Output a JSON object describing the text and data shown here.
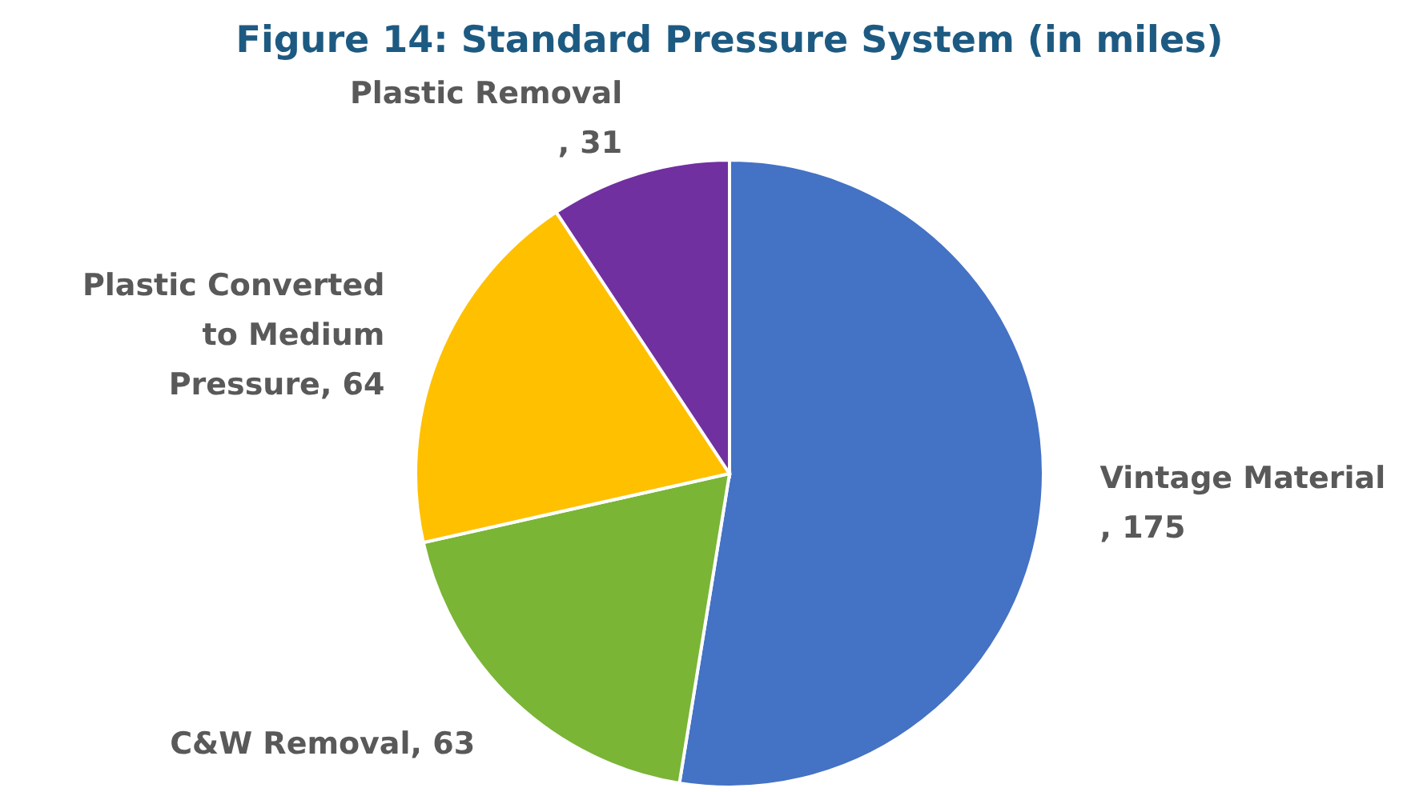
{
  "chart_data": {
    "type": "pie",
    "title": "Figure 14: Standard Pressure System (in miles)",
    "categories": [
      "Vintage Material",
      "C&W Removal",
      "Plastic Converted to Medium Pressure",
      "Plastic Removal"
    ],
    "values": [
      175,
      63,
      64,
      31
    ],
    "colors": [
      "#4472c4",
      "#7ab536",
      "#ffc000",
      "#7030a0"
    ],
    "value_labels": [
      ", 175",
      ", 63",
      ", 64",
      ", 31"
    ]
  }
}
